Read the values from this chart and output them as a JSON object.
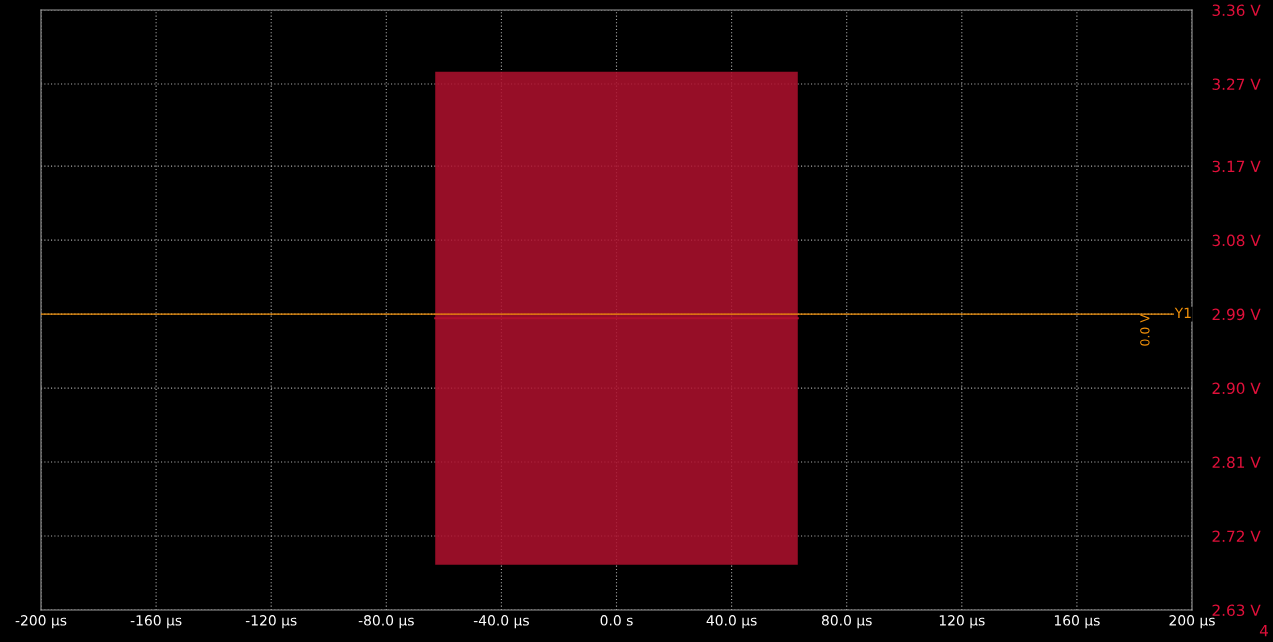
{
  "chart_data": {
    "type": "line",
    "series": [
      {
        "color": "#b0102e",
        "x": [
          -63,
          63
        ],
        "values": [
          2.985,
          2.985
        ],
        "lower": [
          2.685,
          2.685
        ],
        "upper": [
          3.285,
          3.285
        ]
      }
    ],
    "xlim": [
      -200,
      200
    ],
    "xticks": [
      {
        "value": -200,
        "label": "-200 µs"
      },
      {
        "value": -160,
        "label": "-160 µs"
      },
      {
        "value": -120,
        "label": "-120 µs"
      },
      {
        "value": -80,
        "label": "-80.0 µs"
      },
      {
        "value": -40,
        "label": "-40.0 µs"
      },
      {
        "value": 0,
        "label": "0.0 s"
      },
      {
        "value": 40,
        "label": "40.0 µs"
      },
      {
        "value": 80,
        "label": "80.0 µs"
      },
      {
        "value": 120,
        "label": "120 µs"
      },
      {
        "value": 160,
        "label": "160 µs"
      },
      {
        "value": 200,
        "label": "200 µs"
      }
    ],
    "ylim": [
      2.63,
      3.36
    ],
    "yticks": [
      {
        "value": 2.63,
        "label": "2.63 V"
      },
      {
        "value": 2.72,
        "label": "2.72 V"
      },
      {
        "value": 2.81,
        "label": "2.81 V"
      },
      {
        "value": 2.9,
        "label": "2.90 V"
      },
      {
        "value": 2.99,
        "label": "2.99 V"
      },
      {
        "value": 3.08,
        "label": "3.08 V"
      },
      {
        "value": 3.17,
        "label": "3.17 V"
      },
      {
        "value": 3.27,
        "label": "3.27 V"
      },
      {
        "value": 3.36,
        "label": "3.36 V"
      }
    ],
    "ref_lines": [
      {
        "axis": "y",
        "value": 2.99,
        "label": "Y1",
        "color": "#f0900a"
      }
    ],
    "annotations": [
      "0.0 V",
      "4"
    ],
    "grid": true
  }
}
